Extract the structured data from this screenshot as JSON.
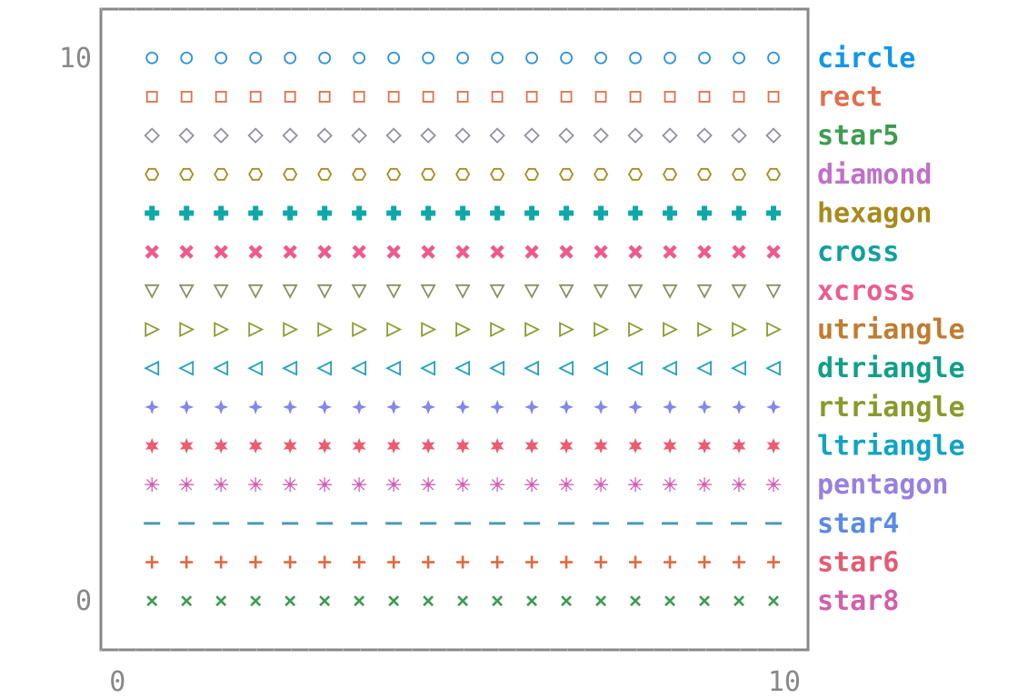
{
  "chart_data": {
    "type": "scatter",
    "title": "",
    "xlabel": "",
    "ylabel": "",
    "xlim": [
      -0.24,
      10
    ],
    "ylim": [
      -0.9,
      10.9
    ],
    "grid": false,
    "legend_placement": "right",
    "x_tick_labels": [
      {
        "value": 0,
        "label": "0"
      },
      {
        "value": 10,
        "label": "10"
      }
    ],
    "y_tick_labels": [
      {
        "value": 0,
        "label": "0"
      },
      {
        "value": 10,
        "label": "10"
      }
    ],
    "x": [
      0.5,
      1,
      1.5,
      2,
      2.5,
      3,
      3.5,
      4,
      4.5,
      5,
      5.5,
      6,
      6.5,
      7,
      7.5,
      8,
      8.5,
      9,
      9.5
    ],
    "series": [
      {
        "name": "circle",
        "marker": "circle",
        "color": "#2a92de",
        "label_color": "#1296e8",
        "y": 10
      },
      {
        "name": "rect",
        "marker": "rect",
        "color": "#e0704c",
        "label_color": "#e0704c",
        "y": 9.2857
      },
      {
        "name": "star5",
        "marker": "diamond",
        "color": "#9090a0",
        "label_color": "#3c9c50",
        "y": 8.5714
      },
      {
        "name": "diamond",
        "marker": "hexagon",
        "color": "#a88a1c",
        "label_color": "#c070c8",
        "y": 7.8571
      },
      {
        "name": "hexagon",
        "marker": "cross",
        "color": "#0ea8a8",
        "label_color": "#a88a1c",
        "y": 7.1429
      },
      {
        "name": "cross",
        "marker": "xcross",
        "color": "#ee5a8e",
        "label_color": "#10a0a0",
        "y": 6.4286
      },
      {
        "name": "xcross",
        "marker": "dtriangle",
        "color": "#8a9060",
        "label_color": "#ee5a8e",
        "y": 5.7143
      },
      {
        "name": "utriangle",
        "marker": "rtriangle",
        "color": "#8c9a30",
        "label_color": "#c07c30",
        "y": 5
      },
      {
        "name": "dtriangle",
        "marker": "ltriangle",
        "color": "#22a0c0",
        "label_color": "#10a088",
        "y": 4.2857
      },
      {
        "name": "rtriangle",
        "marker": "star4",
        "color": "#8088ea",
        "label_color": "#8a9a2a",
        "y": 3.5714
      },
      {
        "name": "ltriangle",
        "marker": "star6",
        "color": "#ee5a70",
        "label_color": "#10a4c4",
        "y": 2.8571
      },
      {
        "name": "pentagon",
        "marker": "star8",
        "color": "#d460b4",
        "label_color": "#9880e0",
        "y": 2.1429
      },
      {
        "name": "star4",
        "marker": "hline",
        "color": "#4a9ab4",
        "label_color": "#5a8ae4",
        "y": 1.4286
      },
      {
        "name": "star6",
        "marker": "plus",
        "color": "#e2683e",
        "label_color": "#e65a70",
        "y": 0.7143
      },
      {
        "name": "star8",
        "marker": "x",
        "color": "#3c9c50",
        "label_color": "#d060ac",
        "y": 0
      }
    ]
  }
}
